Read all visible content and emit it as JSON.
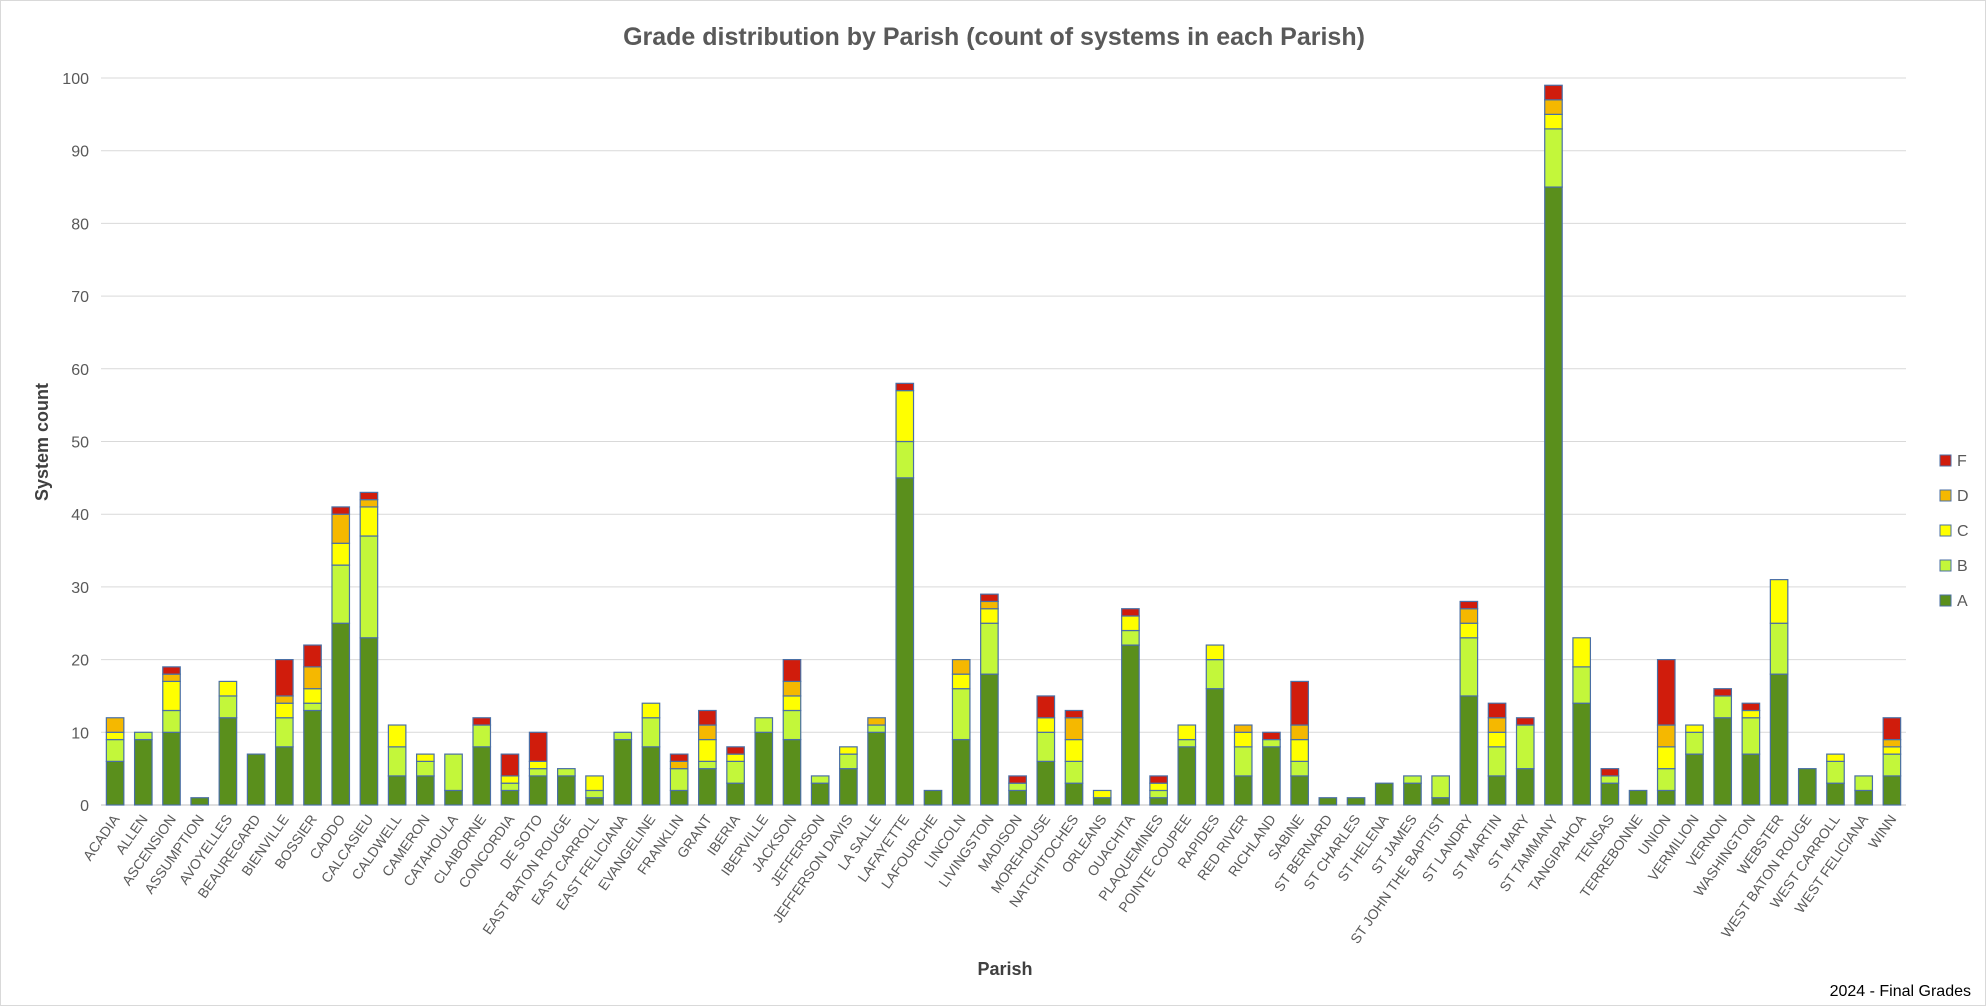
{
  "chart_data": {
    "type": "bar",
    "stacked": true,
    "title": "Grade distribution by Parish (count of systems in each Parish)",
    "xlabel": "Parish",
    "ylabel": "System count",
    "ylim": [
      0,
      100
    ],
    "yticks": [
      0,
      10,
      20,
      30,
      40,
      50,
      60,
      70,
      80,
      90,
      100
    ],
    "grid": true,
    "legend_position": "right",
    "footer": "2024 - Final Grades",
    "categories": [
      "ACADIA",
      "ALLEN",
      "ASCENSION",
      "ASSUMPTION",
      "AVOYELLES",
      "BEAUREGARD",
      "BIENVILLE",
      "BOSSIER",
      "CADDO",
      "CALCASIEU",
      "CALDWELL",
      "CAMERON",
      "CATAHOULA",
      "CLAIBORNE",
      "CONCORDIA",
      "DE SOTO",
      "EAST BATON ROUGE",
      "EAST CARROLL",
      "EAST FELICIANA",
      "EVANGELINE",
      "FRANKLIN",
      "GRANT",
      "IBERIA",
      "IBERVILLE",
      "JACKSON",
      "JEFFERSON",
      "JEFFERSON DAVIS",
      "LA SALLE",
      "LAFAYETTE",
      "LAFOURCHE",
      "LINCOLN",
      "LIVINGSTON",
      "MADISON",
      "MOREHOUSE",
      "NATCHITOCHES",
      "ORLEANS",
      "OUACHITA",
      "PLAQUEMINES",
      "POINTE COUPEE",
      "RAPIDES",
      "RED RIVER",
      "RICHLAND",
      "SABINE",
      "ST BERNARD",
      "ST CHARLES",
      "ST HELENA",
      "ST JAMES",
      "ST JOHN THE BAPTIST",
      "ST LANDRY",
      "ST MARTIN",
      "ST MARY",
      "ST TAMMANY",
      "TANGIPAHOA",
      "TENSAS",
      "TERREBONNE",
      "UNION",
      "VERMILION",
      "VERNON",
      "WASHINGTON",
      "WEBSTER",
      "WEST BATON ROUGE",
      "WEST CARROLL",
      "WEST FELICIANA",
      "WINN"
    ],
    "series": [
      {
        "name": "A",
        "color": "#5a8f1c",
        "values": [
          6,
          9,
          10,
          1,
          12,
          7,
          8,
          13,
          25,
          23,
          4,
          4,
          2,
          8,
          2,
          4,
          4,
          1,
          9,
          8,
          2,
          5,
          3,
          10,
          9,
          3,
          5,
          10,
          45,
          2,
          9,
          18,
          2,
          6,
          3,
          1,
          22,
          1,
          8,
          16,
          4,
          8,
          4,
          1,
          1,
          3,
          3,
          1,
          15,
          4,
          5,
          85,
          14,
          3,
          2,
          2,
          7,
          12,
          7,
          18,
          5,
          3,
          2,
          4
        ]
      },
      {
        "name": "B",
        "color": "#c3f73a",
        "values": [
          3,
          1,
          3,
          0,
          3,
          0,
          4,
          1,
          8,
          14,
          4,
          2,
          5,
          3,
          1,
          1,
          1,
          1,
          1,
          4,
          3,
          1,
          3,
          2,
          4,
          1,
          2,
          1,
          5,
          0,
          7,
          7,
          1,
          4,
          3,
          0,
          2,
          1,
          1,
          4,
          4,
          1,
          2,
          0,
          0,
          0,
          1,
          3,
          8,
          4,
          6,
          8,
          5,
          1,
          0,
          3,
          3,
          3,
          5,
          7,
          0,
          3,
          2,
          3
        ]
      },
      {
        "name": "C",
        "color": "#ffff00",
        "values": [
          1,
          0,
          4,
          0,
          2,
          0,
          2,
          2,
          3,
          4,
          3,
          1,
          0,
          0,
          1,
          1,
          0,
          2,
          0,
          2,
          0,
          3,
          1,
          0,
          2,
          0,
          1,
          0,
          7,
          0,
          2,
          2,
          0,
          2,
          3,
          1,
          2,
          1,
          2,
          2,
          2,
          0,
          3,
          0,
          0,
          0,
          0,
          0,
          2,
          2,
          0,
          2,
          4,
          0,
          0,
          3,
          1,
          0,
          1,
          6,
          0,
          1,
          0,
          1
        ]
      },
      {
        "name": "D",
        "color": "#f5b800",
        "values": [
          2,
          0,
          1,
          0,
          0,
          0,
          1,
          3,
          4,
          1,
          0,
          0,
          0,
          0,
          0,
          0,
          0,
          0,
          0,
          0,
          1,
          2,
          0,
          0,
          2,
          0,
          0,
          1,
          0,
          0,
          2,
          1,
          0,
          0,
          3,
          0,
          0,
          0,
          0,
          0,
          1,
          0,
          2,
          0,
          0,
          0,
          0,
          0,
          2,
          2,
          0,
          2,
          0,
          0,
          0,
          3,
          0,
          0,
          0,
          0,
          0,
          0,
          0,
          1
        ]
      },
      {
        "name": "F",
        "color": "#d01c0c",
        "values": [
          0,
          0,
          1,
          0,
          0,
          0,
          5,
          3,
          1,
          1,
          0,
          0,
          0,
          1,
          3,
          4,
          0,
          0,
          0,
          0,
          1,
          2,
          1,
          0,
          3,
          0,
          0,
          0,
          1,
          0,
          0,
          1,
          1,
          3,
          1,
          0,
          1,
          1,
          0,
          0,
          0,
          1,
          6,
          0,
          0,
          0,
          0,
          0,
          1,
          2,
          1,
          2,
          0,
          1,
          0,
          9,
          0,
          1,
          1,
          0,
          0,
          0,
          0,
          3
        ]
      }
    ]
  }
}
